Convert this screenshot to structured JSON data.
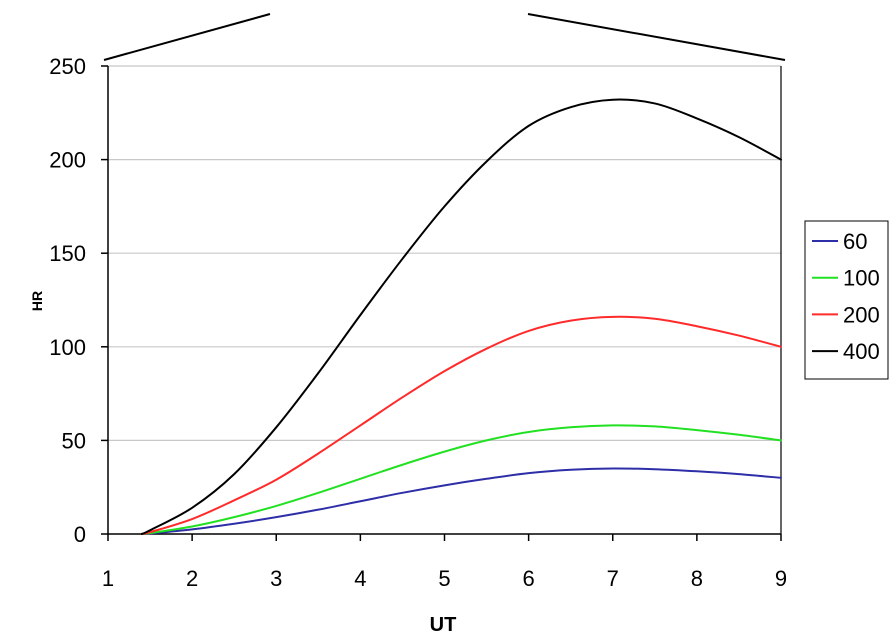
{
  "chart_data": {
    "type": "line",
    "title": "",
    "xlabel": "UT",
    "ylabel": "HR",
    "xlim": [
      1,
      9
    ],
    "ylim": [
      0,
      250
    ],
    "x_ticks": [
      1,
      2,
      3,
      4,
      5,
      6,
      7,
      8,
      9
    ],
    "y_ticks": [
      0,
      50,
      100,
      150,
      200,
      250
    ],
    "grid": "horizontal",
    "legend_position": "right",
    "series": [
      {
        "name": "60",
        "color": "#2e2ea8",
        "x": [
          1.4,
          1.5,
          2,
          2.5,
          3,
          3.5,
          4,
          4.5,
          5,
          5.5,
          6,
          6.5,
          7,
          7.5,
          8,
          8.5,
          9
        ],
        "y": [
          0,
          0.3,
          2.5,
          5.5,
          9,
          13,
          17.5,
          22,
          26,
          29.5,
          32.5,
          34.3,
          35,
          34.6,
          33.5,
          32,
          30
        ]
      },
      {
        "name": "100",
        "color": "#22e022",
        "x": [
          1.4,
          1.5,
          2,
          2.5,
          3,
          3.5,
          4,
          4.5,
          5,
          5.5,
          6,
          6.5,
          7,
          7.5,
          8,
          8.5,
          9
        ],
        "y": [
          0,
          0.5,
          4,
          9,
          15,
          22,
          29.5,
          37,
          44,
          50,
          54.5,
          57,
          58,
          57.5,
          55.5,
          53,
          50
        ]
      },
      {
        "name": "200",
        "color": "#ff2a2a",
        "x": [
          1.4,
          1.5,
          2,
          2.5,
          3,
          3.5,
          4,
          4.5,
          5,
          5.5,
          6,
          6.5,
          7,
          7.5,
          8,
          8.5,
          9
        ],
        "y": [
          0,
          1,
          8,
          18,
          29,
          43,
          58,
          73,
          87,
          99,
          108.5,
          114,
          116,
          115,
          111,
          106,
          100
        ]
      },
      {
        "name": "400",
        "color": "#000000",
        "x": [
          1.4,
          1.5,
          2,
          2.5,
          3,
          3.5,
          4,
          4.5,
          5,
          5.5,
          6,
          6.5,
          7,
          7.5,
          8,
          8.5,
          9
        ],
        "y": [
          0,
          2,
          14,
          32,
          57,
          86,
          117,
          147,
          175,
          199,
          218,
          228,
          232,
          230,
          222,
          212,
          200
        ]
      }
    ]
  }
}
